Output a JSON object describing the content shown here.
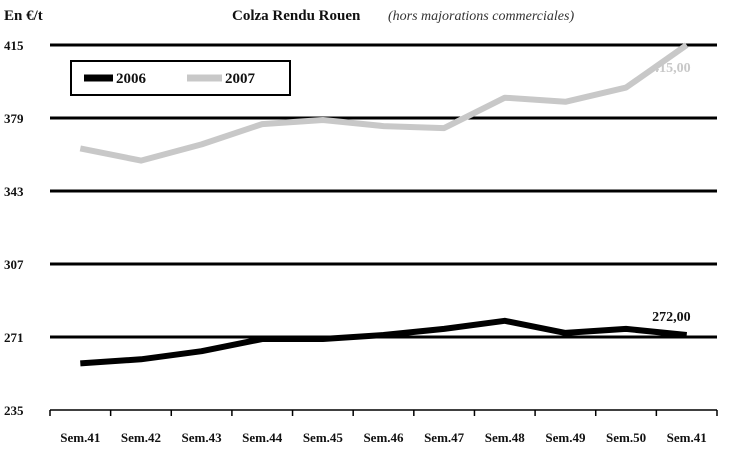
{
  "chart_data": {
    "type": "line",
    "title": "Colza Rendu Rouen",
    "subtitle": "(hors majorations commerciales)",
    "ylabel": "En €/t",
    "xlabel": "",
    "categories": [
      "Sem.41",
      "Sem.42",
      "Sem.43",
      "Sem.44",
      "Sem.45",
      "Sem.46",
      "Sem.47",
      "Sem.48",
      "Sem.49",
      "Sem.50",
      "Sem.41"
    ],
    "ylim": [
      235,
      415
    ],
    "yticks": [
      235,
      271,
      307,
      343,
      379,
      415
    ],
    "grid": true,
    "legend_position": "top-left",
    "series": [
      {
        "name": "2006",
        "color": "#000000",
        "values": [
          258,
          260,
          264,
          270,
          270,
          272,
          275,
          279,
          273,
          275,
          272
        ],
        "end_label": "272,00"
      },
      {
        "name": "2007",
        "color": "#c8c8c8",
        "values": [
          364,
          358,
          366,
          376,
          378,
          375,
          374,
          389,
          387,
          394,
          415
        ],
        "end_label": "415,00"
      }
    ]
  }
}
